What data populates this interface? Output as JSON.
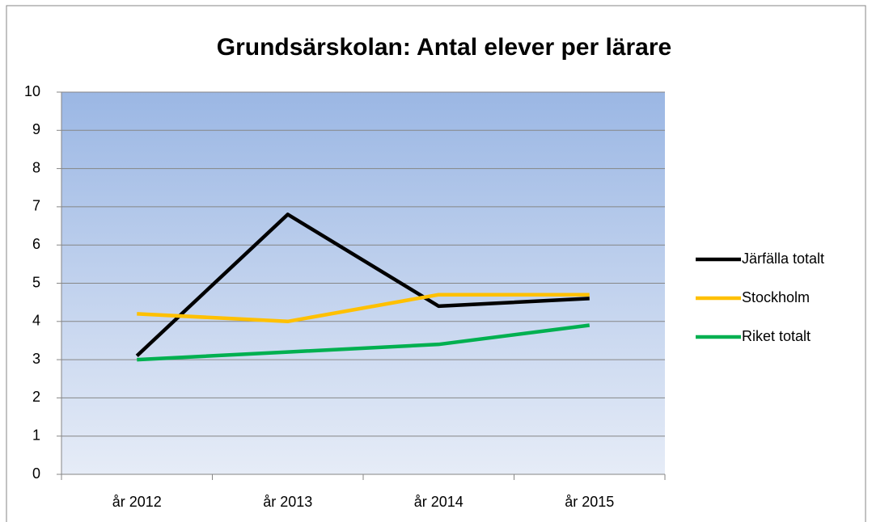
{
  "chart_data": {
    "type": "line",
    "title": "Grundsärskolan: Antal elever per lärare",
    "categories": [
      "år 2012",
      "år 2013",
      "år 2014",
      "år 2015"
    ],
    "series": [
      {
        "name": "Järfälla totalt",
        "color": "#000000",
        "values": [
          3.1,
          6.8,
          4.4,
          4.6
        ]
      },
      {
        "name": "Stockholm",
        "color": "#FFC000",
        "values": [
          4.2,
          4.0,
          4.7,
          4.7
        ]
      },
      {
        "name": "Riket totalt",
        "color": "#00B050",
        "values": [
          3.0,
          3.2,
          3.4,
          3.9
        ]
      }
    ],
    "ylim": [
      0,
      10
    ],
    "yticks": [
      0,
      1,
      2,
      3,
      4,
      5,
      6,
      7,
      8,
      9,
      10
    ],
    "grid": true,
    "legend": "right"
  }
}
